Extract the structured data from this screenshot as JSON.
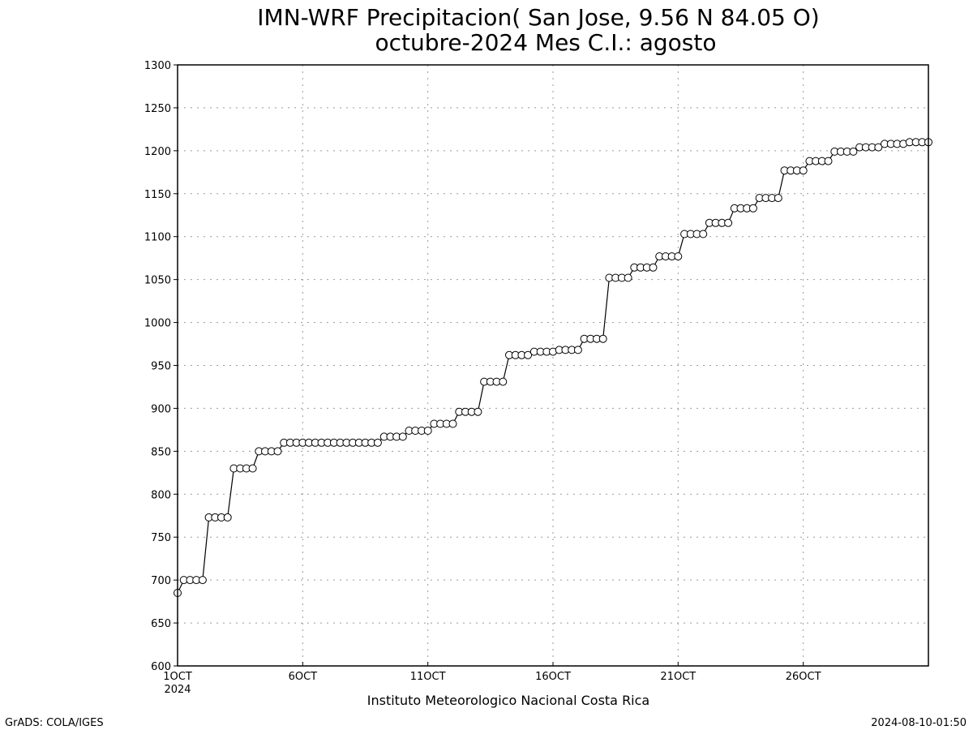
{
  "chart_data": {
    "type": "line",
    "title": "IMN-WRF  Precipitacion( San Jose, 9.56  N 84.05  O)",
    "subtitle": "octubre-2024 Mes C.I.: agosto",
    "xlabel": "Instituto Meteorologico Nacional Costa Rica",
    "ylabel": "",
    "ylim": [
      600,
      1300
    ],
    "y_ticks": [
      600,
      650,
      700,
      750,
      800,
      850,
      900,
      950,
      1000,
      1050,
      1100,
      1150,
      1200,
      1250,
      1300
    ],
    "x_range": [
      1,
      31
    ],
    "x_ticks": [
      {
        "day": 1,
        "label": "1OCT",
        "sublabel": "2024"
      },
      {
        "day": 6,
        "label": "6OCT",
        "sublabel": ""
      },
      {
        "day": 11,
        "label": "11OCT",
        "sublabel": ""
      },
      {
        "day": 16,
        "label": "16OCT",
        "sublabel": ""
      },
      {
        "day": 21,
        "label": "21OCT",
        "sublabel": ""
      },
      {
        "day": 26,
        "label": "26OCT",
        "sublabel": ""
      }
    ],
    "grid": true,
    "marker": "open-circle",
    "series": [
      {
        "x_start": 1,
        "x_step": 0.25,
        "values": [
          685,
          700,
          700,
          700,
          700,
          773,
          773,
          773,
          773,
          830,
          830,
          830,
          830,
          850,
          850,
          850,
          850,
          860,
          860,
          860,
          860,
          860,
          860,
          860,
          860,
          860,
          860,
          860,
          860,
          860,
          860,
          860,
          860,
          867,
          867,
          867,
          867,
          874,
          874,
          874,
          874,
          882,
          882,
          882,
          882,
          896,
          896,
          896,
          896,
          931,
          931,
          931,
          931,
          962,
          962,
          962,
          962,
          966,
          966,
          966,
          966,
          968,
          968,
          968,
          968,
          981,
          981,
          981,
          981,
          1052,
          1052,
          1052,
          1052,
          1064,
          1064,
          1064,
          1064,
          1077,
          1077,
          1077,
          1077,
          1103,
          1103,
          1103,
          1103,
          1116,
          1116,
          1116,
          1116,
          1133,
          1133,
          1133,
          1133,
          1145,
          1145,
          1145,
          1145,
          1177,
          1177,
          1177,
          1177,
          1188,
          1188,
          1188,
          1188,
          1199,
          1199,
          1199,
          1199,
          1204,
          1204,
          1204,
          1204,
          1208,
          1208,
          1208,
          1208,
          1210,
          1210,
          1210,
          1210
        ]
      }
    ]
  },
  "footer": {
    "left": "GrADS: COLA/IGES",
    "right": "2024-08-10-01:50"
  }
}
